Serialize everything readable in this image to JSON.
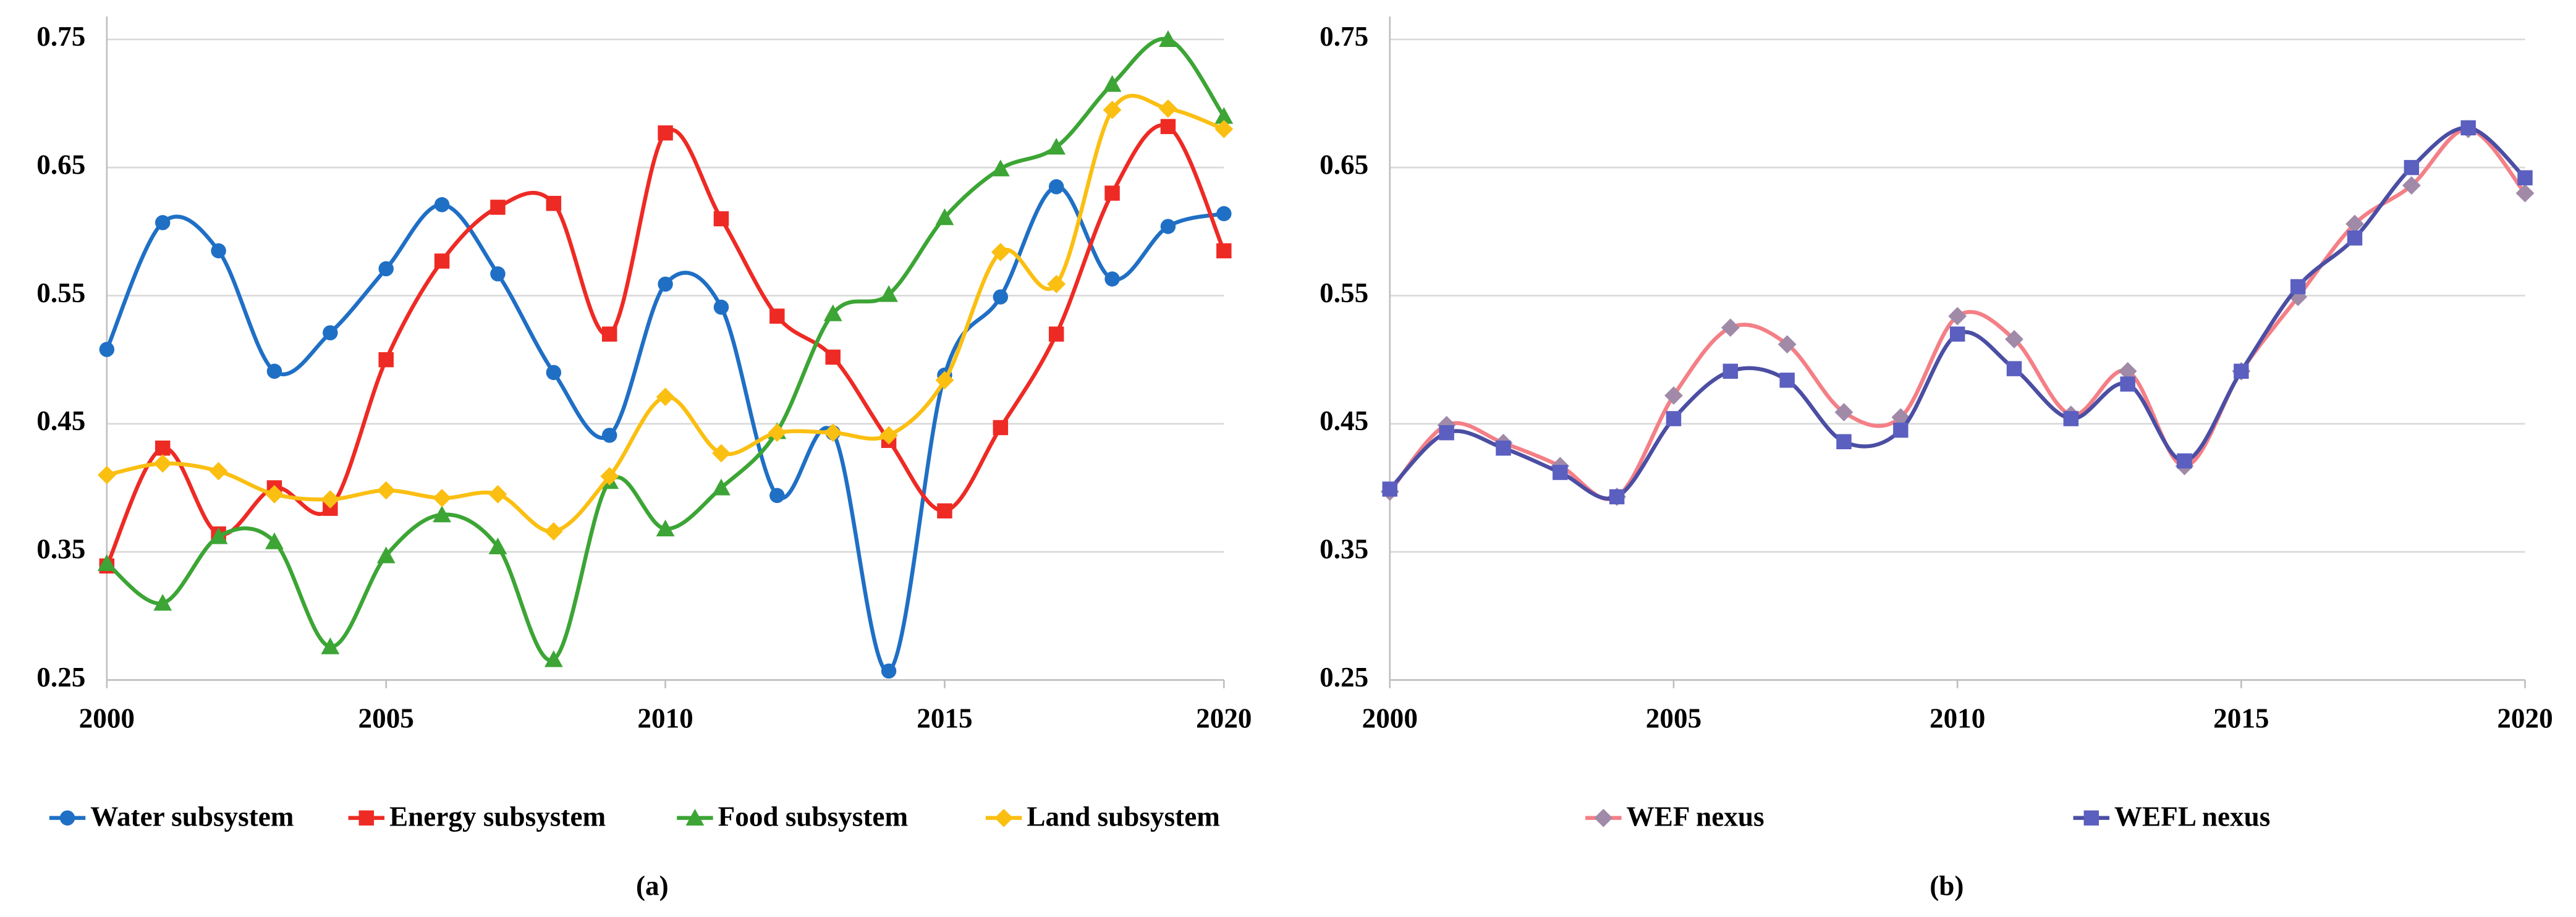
{
  "chart_data": [
    {
      "type": "line",
      "caption": "(a)",
      "x": [
        2000,
        2001,
        2002,
        2003,
        2004,
        2005,
        2006,
        2007,
        2008,
        2009,
        2010,
        2011,
        2012,
        2013,
        2014,
        2015,
        2016,
        2017,
        2018,
        2019,
        2020
      ],
      "xlim": [
        2000,
        2020
      ],
      "xticks": [
        2000,
        2005,
        2010,
        2015,
        2020
      ],
      "ylim": [
        0.25,
        0.75
      ],
      "yticks": [
        0.25,
        0.35,
        0.45,
        0.55,
        0.65,
        0.75
      ],
      "grid": true,
      "smooth": true,
      "legend": "bottom",
      "series": [
        {
          "name": "Water subsystem",
          "color": "#1f6fc5",
          "marker": "circle",
          "values": [
            0.508,
            0.607,
            0.585,
            0.491,
            0.521,
            0.571,
            0.621,
            0.567,
            0.49,
            0.441,
            0.559,
            0.541,
            0.394,
            0.443,
            0.257,
            0.488,
            0.549,
            0.635,
            0.563,
            0.604,
            0.614
          ]
        },
        {
          "name": "Energy subsystem",
          "color": "#ee2a24",
          "marker": "square",
          "values": [
            0.339,
            0.431,
            0.364,
            0.4,
            0.384,
            0.5,
            0.577,
            0.619,
            0.622,
            0.52,
            0.677,
            0.61,
            0.534,
            0.502,
            0.437,
            0.382,
            0.447,
            0.52,
            0.63,
            0.682,
            0.585
          ]
        },
        {
          "name": "Food subsystem",
          "color": "#3ca535",
          "marker": "triangle",
          "values": [
            0.341,
            0.31,
            0.362,
            0.358,
            0.276,
            0.347,
            0.379,
            0.354,
            0.266,
            0.405,
            0.368,
            0.4,
            0.444,
            0.536,
            0.551,
            0.611,
            0.649,
            0.666,
            0.715,
            0.75,
            0.69
          ]
        },
        {
          "name": "Land subsystem",
          "color": "#fbbf12",
          "marker": "diamond",
          "values": [
            0.41,
            0.419,
            0.413,
            0.395,
            0.391,
            0.398,
            0.392,
            0.395,
            0.366,
            0.409,
            0.471,
            0.427,
            0.443,
            0.443,
            0.441,
            0.484,
            0.584,
            0.559,
            0.695,
            0.696,
            0.68
          ]
        }
      ]
    },
    {
      "type": "line",
      "caption": "(b)",
      "x": [
        2000,
        2001,
        2002,
        2003,
        2004,
        2005,
        2006,
        2007,
        2008,
        2009,
        2010,
        2011,
        2012,
        2013,
        2014,
        2015,
        2016,
        2017,
        2018,
        2019,
        2020
      ],
      "xlim": [
        2000,
        2020
      ],
      "xticks": [
        2000,
        2005,
        2010,
        2015,
        2020
      ],
      "ylim": [
        0.25,
        0.75
      ],
      "yticks": [
        0.25,
        0.35,
        0.45,
        0.55,
        0.65,
        0.75
      ],
      "grid": true,
      "smooth": true,
      "legend": "bottom",
      "series": [
        {
          "name": "WEF nexus",
          "color": "#f47f86",
          "marker": "diamond",
          "marker_color": "#a08aa8",
          "values": [
            0.397,
            0.449,
            0.435,
            0.417,
            0.393,
            0.472,
            0.525,
            0.512,
            0.459,
            0.455,
            0.534,
            0.516,
            0.457,
            0.491,
            0.417,
            0.491,
            0.549,
            0.606,
            0.636,
            0.68,
            0.63
          ]
        },
        {
          "name": "WEFL nexus",
          "color": "#4b4ea3",
          "marker": "square",
          "marker_color": "#5b5fc0",
          "values": [
            0.399,
            0.443,
            0.431,
            0.412,
            0.393,
            0.454,
            0.491,
            0.484,
            0.436,
            0.445,
            0.52,
            0.493,
            0.454,
            0.481,
            0.421,
            0.491,
            0.557,
            0.595,
            0.65,
            0.681,
            0.642
          ]
        }
      ]
    }
  ]
}
